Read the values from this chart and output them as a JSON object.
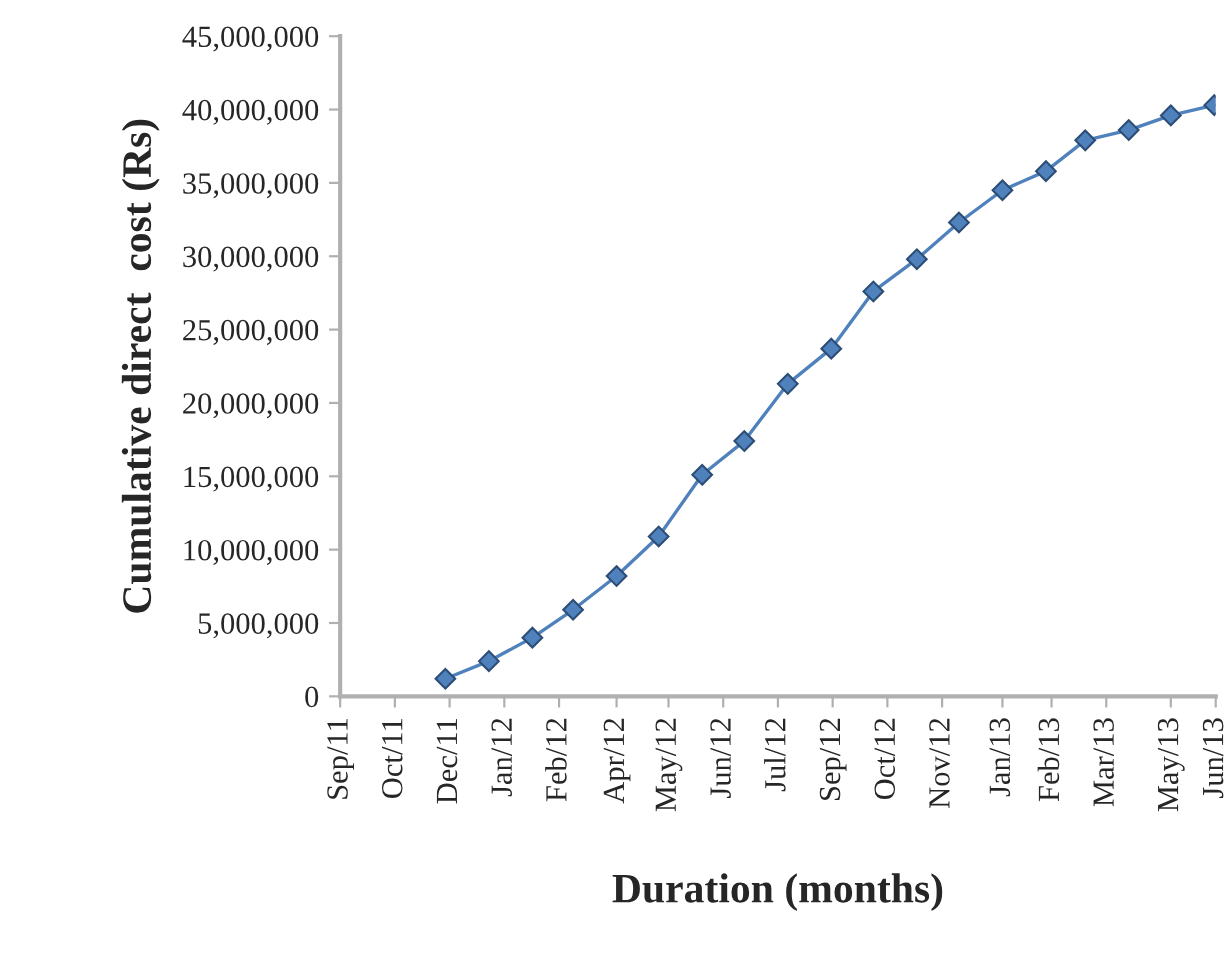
{
  "chart_data": {
    "type": "line",
    "xlabel": "Duration (months)",
    "ylabel": "Cumulative direct  cost (Rs)",
    "x": [
      "2011-12-01",
      "2012-01-01",
      "2012-02-01",
      "2012-03-01",
      "2012-04-01",
      "2012-05-01",
      "2012-06-01",
      "2012-07-01",
      "2012-08-01",
      "2012-09-01",
      "2012-10-01",
      "2012-11-01",
      "2012-12-01",
      "2013-01-01",
      "2013-02-01",
      "2013-03-01",
      "2013-04-01",
      "2013-05-01",
      "2013-06-01"
    ],
    "series": [
      {
        "color": "#4f81bd",
        "values": [
          1200000,
          2400000,
          4000000,
          5900000,
          8200000,
          10900000,
          15100000,
          17400000,
          21300000,
          23700000,
          27600000,
          29800000,
          32300000,
          34500000,
          35800000,
          37900000,
          38600000,
          39600000,
          40300000
        ]
      }
    ],
    "xlim": [
      "2011-09-17",
      "2013-06-02"
    ],
    "xticks": [
      {
        "value": "2011-09-17",
        "label": "Sep/11"
      },
      {
        "value": "2011-10-26",
        "label": "Oct/11"
      },
      {
        "value": "2011-12-04",
        "label": "Dec/11"
      },
      {
        "value": "2012-01-12",
        "label": "Jan/12"
      },
      {
        "value": "2012-02-20",
        "label": "Feb/12"
      },
      {
        "value": "2012-04-01",
        "label": "Apr/12"
      },
      {
        "value": "2012-05-08",
        "label": "May/12"
      },
      {
        "value": "2012-06-16",
        "label": "Jun/12"
      },
      {
        "value": "2012-07-25",
        "label": "Jul/12"
      },
      {
        "value": "2012-09-02",
        "label": "Sep/12"
      },
      {
        "value": "2012-10-11",
        "label": "Oct/12"
      },
      {
        "value": "2012-11-19",
        "label": "Nov/12"
      },
      {
        "value": "2013-01-01",
        "label": "Jan/13"
      },
      {
        "value": "2013-02-05",
        "label": "Feb/13"
      },
      {
        "value": "2013-03-16",
        "label": "Mar/13"
      },
      {
        "value": "2013-05-01",
        "label": "May/13"
      },
      {
        "value": "2013-06-02",
        "label": "Jun/13"
      }
    ],
    "ylim": [
      0,
      45000000
    ],
    "yticks": [
      {
        "value": 0,
        "label": "0"
      },
      {
        "value": 5000000,
        "label": "5,000,000"
      },
      {
        "value": 10000000,
        "label": "10,000,000"
      },
      {
        "value": 15000000,
        "label": "15,000,000"
      },
      {
        "value": 20000000,
        "label": "20,000,000"
      },
      {
        "value": 25000000,
        "label": "25,000,000"
      },
      {
        "value": 30000000,
        "label": "30,000,000"
      },
      {
        "value": 35000000,
        "label": "35,000,000"
      },
      {
        "value": 40000000,
        "label": "40,000,000"
      },
      {
        "value": 45000000,
        "label": "45,000,000"
      }
    ],
    "grid": false,
    "marker": "diamond",
    "line_style": "solid"
  }
}
